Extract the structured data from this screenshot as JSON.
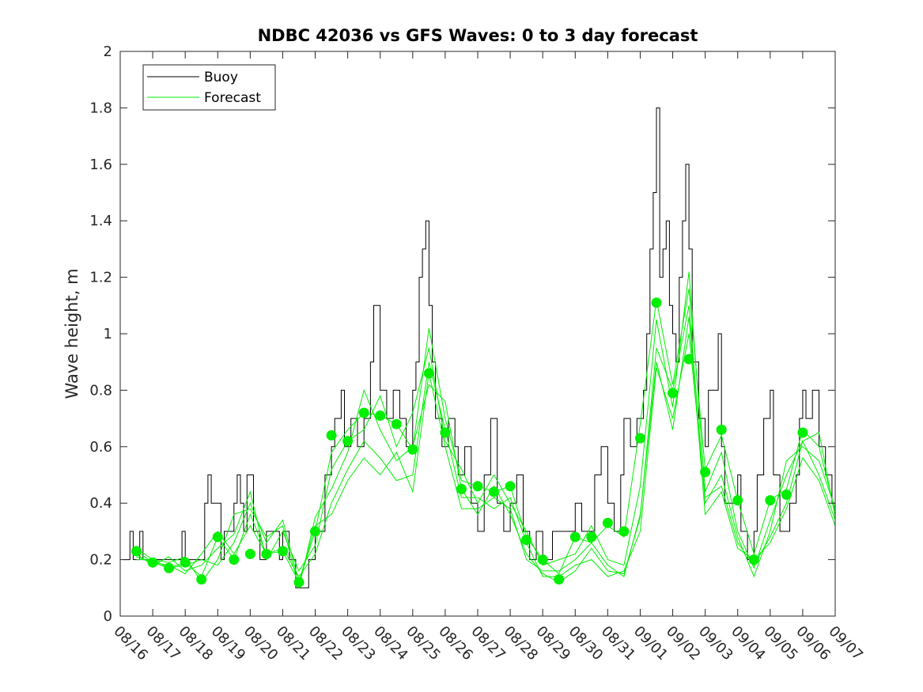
{
  "chart_data": {
    "type": "line",
    "title": "NDBC 42036 vs GFS Waves: 0 to 3 day forecast",
    "xlabel": "",
    "ylabel": "Wave height, m",
    "xlim": [
      0,
      22
    ],
    "ylim": [
      0,
      2
    ],
    "yticks": [
      0,
      0.2,
      0.4,
      0.6,
      0.8,
      1,
      1.2,
      1.4,
      1.6,
      1.8,
      2
    ],
    "ytick_labels": [
      "0",
      "0.2",
      "0.4",
      "0.6",
      "0.8",
      "1",
      "1.2",
      "1.4",
      "1.6",
      "1.8",
      "2"
    ],
    "xtick_labels": [
      "08/16",
      "08/17",
      "08/18",
      "08/19",
      "08/20",
      "08/21",
      "08/22",
      "08/23",
      "08/24",
      "08/25",
      "08/26",
      "08/27",
      "08/28",
      "08/29",
      "08/30",
      "08/31",
      "09/01",
      "09/02",
      "09/03",
      "09/04",
      "09/05",
      "09/06",
      "09/07"
    ],
    "x_units": "days since 08/16",
    "legend": {
      "position": "top-left",
      "entries": [
        "Buoy",
        "Forecast"
      ]
    },
    "colors": {
      "buoy": "#000000",
      "forecast": "#00ee00",
      "analysis_points": "#00ee00"
    },
    "series": [
      {
        "name": "Buoy",
        "style": "step",
        "x": [
          0.1,
          0.3,
          0.4,
          0.6,
          0.7,
          1.0,
          1.5,
          1.8,
          1.9,
          2.0,
          2.2,
          2.6,
          2.7,
          2.8,
          3.1,
          3.2,
          3.5,
          3.6,
          3.7,
          3.8,
          3.9,
          4.1,
          4.3,
          4.5,
          4.6,
          4.9,
          5.0,
          5.2,
          5.4,
          5.5,
          5.7,
          5.8,
          6.0,
          6.3,
          6.5,
          6.6,
          6.8,
          6.9,
          7.1,
          7.3,
          7.5,
          7.7,
          7.8,
          8.0,
          8.2,
          8.4,
          8.6,
          8.8,
          9.0,
          9.1,
          9.2,
          9.3,
          9.4,
          9.5,
          9.6,
          9.7,
          9.9,
          10.1,
          10.3,
          10.4,
          10.6,
          10.8,
          11.0,
          11.2,
          11.4,
          11.6,
          11.8,
          12.0,
          12.2,
          12.4,
          12.6,
          12.8,
          13.0,
          13.3,
          13.6,
          13.8,
          14.0,
          14.2,
          14.4,
          14.6,
          14.8,
          15.0,
          15.2,
          15.4,
          15.5,
          15.7,
          15.9,
          16.1,
          16.2,
          16.3,
          16.4,
          16.5,
          16.6,
          16.7,
          16.8,
          16.9,
          17.0,
          17.1,
          17.2,
          17.3,
          17.4,
          17.5,
          17.6,
          17.8,
          18.0,
          18.1,
          18.3,
          18.4,
          18.5,
          18.6,
          18.8,
          19.0,
          19.1,
          19.3,
          19.5,
          19.6,
          19.8,
          20.0,
          20.1,
          20.3,
          20.4,
          20.6,
          20.8,
          20.9,
          21.0,
          21.1,
          21.3,
          21.5,
          21.7,
          21.9,
          22.0
        ],
        "values": [
          0.2,
          0.3,
          0.2,
          0.3,
          0.2,
          0.2,
          0.2,
          0.2,
          0.3,
          0.2,
          0.2,
          0.4,
          0.5,
          0.4,
          0.2,
          0.3,
          0.4,
          0.5,
          0.4,
          0.3,
          0.5,
          0.3,
          0.2,
          0.3,
          0.3,
          0.2,
          0.3,
          0.2,
          0.1,
          0.1,
          0.1,
          0.2,
          0.3,
          0.5,
          0.6,
          0.7,
          0.8,
          0.6,
          0.7,
          0.6,
          0.7,
          0.9,
          1.1,
          0.8,
          0.7,
          0.8,
          0.7,
          0.6,
          0.8,
          0.9,
          1.2,
          1.3,
          1.4,
          1.1,
          0.9,
          0.7,
          0.6,
          0.7,
          0.6,
          0.5,
          0.6,
          0.4,
          0.3,
          0.5,
          0.7,
          0.4,
          0.3,
          0.4,
          0.5,
          0.3,
          0.2,
          0.3,
          0.2,
          0.3,
          0.3,
          0.3,
          0.4,
          0.3,
          0.3,
          0.5,
          0.6,
          0.4,
          0.3,
          0.5,
          0.7,
          0.6,
          0.7,
          0.8,
          1.0,
          1.3,
          1.5,
          1.8,
          1.2,
          1.3,
          1.4,
          1.1,
          1.0,
          0.9,
          1.2,
          1.4,
          1.6,
          1.3,
          0.9,
          0.7,
          0.6,
          0.8,
          0.8,
          1.0,
          0.6,
          0.4,
          0.4,
          0.5,
          0.3,
          0.2,
          0.3,
          0.5,
          0.7,
          0.8,
          0.5,
          0.3,
          0.3,
          0.4,
          0.5,
          0.7,
          0.8,
          0.7,
          0.8,
          0.6,
          0.5,
          0.4,
          0.4
        ]
      },
      {
        "name": "Forecast",
        "x": [
          0.5,
          1.0,
          1.5,
          2.0,
          2.5,
          3.0,
          3.5,
          4.0,
          4.5,
          5.0,
          5.5,
          6.0,
          6.5,
          7.0,
          7.5,
          8.0,
          8.5,
          9.0,
          9.5,
          10.0,
          10.5,
          11.0,
          11.5,
          12.0,
          12.5,
          13.0,
          13.5,
          14.0,
          14.5,
          15.0,
          15.5,
          16.0,
          16.5,
          17.0,
          17.5,
          18.0,
          18.5,
          19.0,
          19.5,
          20.0,
          20.5,
          21.0,
          21.5,
          22.0
        ],
        "values": [
          0.23,
          0.19,
          0.17,
          0.19,
          0.14,
          0.28,
          0.2,
          0.36,
          0.22,
          0.23,
          0.12,
          0.3,
          0.58,
          0.66,
          0.72,
          0.71,
          0.68,
          0.59,
          1.02,
          0.7,
          0.48,
          0.46,
          0.44,
          0.46,
          0.28,
          0.2,
          0.15,
          0.28,
          0.26,
          0.32,
          0.28,
          0.68,
          1.12,
          0.82,
          1.16,
          0.52,
          0.64,
          0.41,
          0.22,
          0.41,
          0.45,
          0.66,
          0.6,
          0.37
        ]
      },
      {
        "name": "Forecast",
        "x": [
          0.5,
          1.0,
          1.5,
          2.0,
          2.5,
          3.0,
          3.5,
          4.0,
          4.5,
          5.0,
          5.5,
          6.0,
          6.5,
          7.0,
          7.5,
          8.0,
          8.5,
          9.0,
          9.5,
          10.0,
          10.5,
          11.0,
          11.5,
          12.0,
          12.5,
          13.0,
          13.5,
          14.0,
          14.5,
          15.0,
          15.5,
          16.0,
          16.5,
          17.0,
          17.5,
          18.0,
          18.5,
          19.0,
          19.5,
          20.0,
          20.5,
          21.0,
          21.5,
          22.0
        ],
        "values": [
          0.22,
          0.18,
          0.21,
          0.16,
          0.18,
          0.24,
          0.29,
          0.44,
          0.2,
          0.3,
          0.16,
          0.25,
          0.52,
          0.62,
          0.66,
          0.78,
          0.6,
          0.72,
          0.95,
          0.62,
          0.52,
          0.4,
          0.5,
          0.4,
          0.3,
          0.18,
          0.2,
          0.22,
          0.32,
          0.2,
          0.18,
          0.46,
          1.05,
          0.74,
          1.22,
          0.44,
          0.58,
          0.3,
          0.17,
          0.34,
          0.5,
          0.62,
          0.65,
          0.35
        ]
      },
      {
        "name": "Forecast",
        "x": [
          0.5,
          1.0,
          1.5,
          2.0,
          2.5,
          3.0,
          3.5,
          4.0,
          4.5,
          5.0,
          5.5,
          6.0,
          6.5,
          7.0,
          7.5,
          8.0,
          8.5,
          9.0,
          9.5,
          10.0,
          10.5,
          11.0,
          11.5,
          12.0,
          12.5,
          13.0,
          13.5,
          14.0,
          14.5,
          15.0,
          15.5,
          16.0,
          16.5,
          17.0,
          17.5,
          18.0,
          18.5,
          19.0,
          19.5,
          20.0,
          20.5,
          21.0,
          21.5,
          22.0
        ],
        "values": [
          0.24,
          0.2,
          0.19,
          0.21,
          0.12,
          0.2,
          0.36,
          0.38,
          0.28,
          0.32,
          0.1,
          0.35,
          0.45,
          0.58,
          0.8,
          0.66,
          0.55,
          0.6,
          0.82,
          0.76,
          0.45,
          0.36,
          0.46,
          0.36,
          0.22,
          0.15,
          0.12,
          0.16,
          0.24,
          0.16,
          0.15,
          0.35,
          0.95,
          0.8,
          1.1,
          0.4,
          0.5,
          0.28,
          0.14,
          0.3,
          0.55,
          0.6,
          0.55,
          0.38
        ]
      },
      {
        "name": "Forecast",
        "x": [
          0.5,
          1.0,
          1.5,
          2.0,
          2.5,
          3.0,
          3.5,
          4.0,
          4.5,
          5.0,
          5.5,
          6.0,
          6.5,
          7.0,
          7.5,
          8.0,
          8.5,
          9.0,
          9.5,
          10.0,
          10.5,
          11.0,
          11.5,
          12.0,
          12.5,
          13.0,
          13.5,
          14.0,
          14.5,
          15.0,
          15.5,
          16.0,
          16.5,
          17.0,
          17.5,
          18.0,
          18.5,
          19.0,
          19.5,
          20.0,
          20.5,
          21.0,
          21.5,
          22.0
        ],
        "values": [
          0.21,
          0.19,
          0.18,
          0.15,
          0.22,
          0.3,
          0.22,
          0.32,
          0.22,
          0.24,
          0.14,
          0.22,
          0.4,
          0.52,
          0.62,
          0.56,
          0.48,
          0.5,
          0.9,
          0.66,
          0.42,
          0.42,
          0.38,
          0.42,
          0.26,
          0.14,
          0.14,
          0.18,
          0.2,
          0.14,
          0.16,
          0.3,
          0.88,
          0.7,
          1.0,
          0.42,
          0.46,
          0.26,
          0.18,
          0.28,
          0.4,
          0.62,
          0.5,
          0.34
        ]
      },
      {
        "name": "Forecast",
        "x": [
          0.5,
          1.0,
          1.5,
          2.0,
          2.5,
          3.0,
          3.5,
          4.0,
          4.5,
          5.0,
          5.5,
          6.0,
          6.5,
          7.0,
          7.5,
          8.0,
          8.5,
          9.0,
          9.5,
          10.0,
          10.5,
          11.0,
          11.5,
          12.0,
          12.5,
          13.0,
          13.5,
          14.0,
          14.5,
          15.0,
          15.5,
          16.0,
          16.5,
          17.0,
          17.5,
          18.0,
          18.5,
          19.0,
          19.5,
          20.0,
          20.5,
          21.0,
          21.5,
          22.0
        ],
        "values": [
          0.2,
          0.2,
          0.17,
          0.18,
          0.2,
          0.18,
          0.26,
          0.4,
          0.26,
          0.34,
          0.12,
          0.32,
          0.36,
          0.48,
          0.56,
          0.5,
          0.58,
          0.44,
          0.86,
          0.6,
          0.38,
          0.38,
          0.42,
          0.38,
          0.2,
          0.16,
          0.16,
          0.2,
          0.26,
          0.18,
          0.14,
          0.36,
          0.9,
          0.66,
          1.06,
          0.36,
          0.44,
          0.24,
          0.2,
          0.26,
          0.38,
          0.56,
          0.48,
          0.32
        ]
      }
    ],
    "analysis_points": {
      "x": [
        0.5,
        1.0,
        1.5,
        2.0,
        2.5,
        3.0,
        3.5,
        4.0,
        4.5,
        5.0,
        5.5,
        6.0,
        6.5,
        7.0,
        7.5,
        8.0,
        8.5,
        9.0,
        9.5,
        10.0,
        10.5,
        11.0,
        11.5,
        12.0,
        12.5,
        13.0,
        13.5,
        14.0,
        14.5,
        15.0,
        15.5,
        16.0,
        16.5,
        17.0,
        17.5,
        18.0,
        18.5,
        19.0,
        19.5,
        20.0,
        20.5,
        21.0
      ],
      "values": [
        0.23,
        0.19,
        0.17,
        0.19,
        0.13,
        0.28,
        0.2,
        0.22,
        0.22,
        0.23,
        0.12,
        0.3,
        0.64,
        0.62,
        0.72,
        0.71,
        0.68,
        0.59,
        0.86,
        0.65,
        0.45,
        0.46,
        0.44,
        0.46,
        0.27,
        0.2,
        0.13,
        0.28,
        0.28,
        0.33,
        0.3,
        0.63,
        1.11,
        0.79,
        0.91,
        0.51,
        0.66,
        0.41,
        0.2,
        0.41,
        0.43,
        0.65
      ]
    }
  }
}
